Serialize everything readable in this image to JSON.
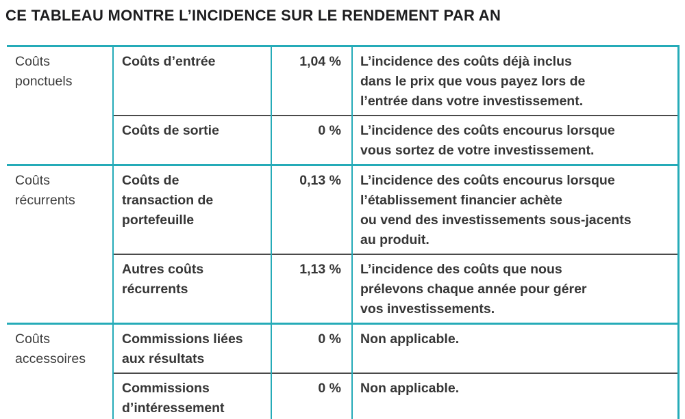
{
  "title": "CE TABLEAU MONTRE L’INCIDENCE SUR LE RENDEMENT PAR AN",
  "colors": {
    "accent_teal": "#25abb8",
    "sub_divider_dark": "#4a4a4a",
    "text_dark": "#363636"
  },
  "table": {
    "groups": [
      {
        "category": "Coûts\nponctuels",
        "rows": [
          {
            "name": "Coûts d’entrée",
            "value": "1,04 %",
            "description": "L’incidence des coûts déjà inclus\ndans le prix que vous payez lors de\nl’entrée dans votre investissement."
          },
          {
            "name": "Coûts de sortie",
            "value": "0 %",
            "description": "L’incidence des coûts encourus lorsque\nvous sortez de votre investissement."
          }
        ]
      },
      {
        "category": "Coûts\nrécurrents",
        "rows": [
          {
            "name": "Coûts de\ntransaction de\nportefeuille",
            "value": "0,13 %",
            "description": "L’incidence des coûts encourus lorsque\nl’établissement financier achète\nou vend des investissements sous-jacents\nau produit."
          },
          {
            "name": "Autres coûts\nrécurrents",
            "value": "1,13 %",
            "description": "L’incidence des coûts que nous\nprélevons chaque année pour gérer\nvos investissements."
          }
        ]
      },
      {
        "category": "Coûts\naccessoires",
        "rows": [
          {
            "name": "Commissions liées\naux résultats",
            "value": "0 %",
            "description": "Non applicable."
          },
          {
            "name": "Commissions\nd’intéressement",
            "value": "0 %",
            "description": "Non applicable."
          }
        ]
      }
    ]
  }
}
